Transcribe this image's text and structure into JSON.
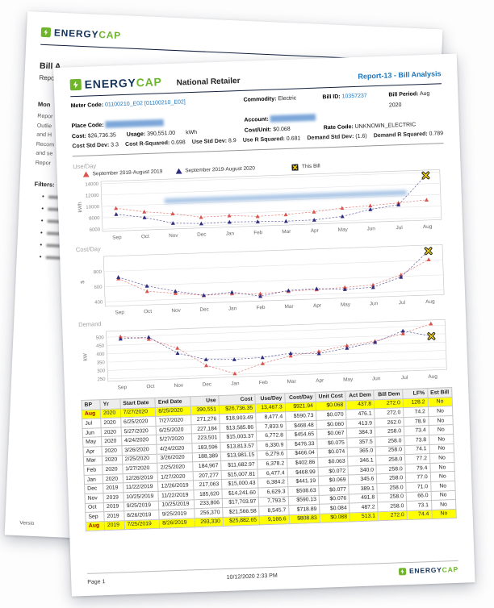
{
  "brand": {
    "energy": "ENERGY",
    "cap": "CAP"
  },
  "colors": {
    "logo_navy": "#16355c",
    "logo_green": "#6fb52c",
    "link_blue": "#1b75bc",
    "series_prior": "#d9544d",
    "series_current": "#2e2c7e",
    "this_bill_fill": "#f2cf0e",
    "this_bill_outline": "#1a1a1a",
    "row_highlight": "#ffff00"
  },
  "back_page": {
    "title": "Bill A",
    "subtitle": "Repo",
    "section_heading": "Mon",
    "paragraph_lines": [
      "Repor",
      "Outlie",
      "and H",
      "Recom",
      "and se",
      "Repor"
    ],
    "filters_label": "Filters:",
    "filter_items": [
      "",
      "",
      "",
      "",
      "",
      ""
    ],
    "version": "Versio"
  },
  "header": {
    "client": "National Retailer",
    "report_title": "Report-13 - Bill Analysis"
  },
  "meta": {
    "meter_code_label": "Meter Code:",
    "meter_code": "01100210_E02 [01100210_E02]",
    "commodity_label": "Commodity:",
    "commodity": "Electric",
    "bill_id_label": "Bill ID:",
    "bill_id": "10357237",
    "bill_period_label": "Bill Period:",
    "bill_period": "Aug 2020",
    "place_code_label": "Place Code:",
    "place_code_masked": "██████████████████",
    "account_label": "Account:",
    "account_masked": "██████████████",
    "cost_label": "Cost:",
    "cost": "$26,736.35",
    "usage_label": "Usage:",
    "usage": "390,551.00",
    "usage_unit": "kWh",
    "cost_per_unit_label": "Cost/Unit:",
    "cost_per_unit": "$0.068",
    "rate_code_label": "Rate Code:",
    "rate_code": "UNKNOWN_ELECTRIC",
    "stats": [
      {
        "label": "Cost Std Dev:",
        "value": "3.3"
      },
      {
        "label": "Cost R-Squared:",
        "value": "0.698"
      },
      {
        "label": "Use Std Dev:",
        "value": "8.9"
      },
      {
        "label": "Use R Squared:",
        "value": "0.681"
      },
      {
        "label": "Demand Std Dev:",
        "value": "(1.6)"
      },
      {
        "label": "Demand R Squared:",
        "value": "0.789"
      }
    ]
  },
  "chart_data": [
    {
      "type": "line",
      "title": "Use/Day",
      "unit": "kWh",
      "categories": [
        "Sep",
        "Oct",
        "Nov",
        "Dec",
        "Jan",
        "Feb",
        "Mar",
        "Apr",
        "May",
        "Jun",
        "Jul",
        "Aug"
      ],
      "ylim": [
        5600,
        14400
      ],
      "yticks": [
        6000,
        8000,
        10000,
        12000,
        14000
      ],
      "legend": true,
      "redacted_overlay": true,
      "series": [
        {
          "name": "September 2018-August 2019",
          "color": "#d9544d",
          "values": [
            9600,
            8800,
            8300,
            7500,
            7600,
            7300,
            7450,
            7750,
            8250,
            8500,
            8800,
            9166.6
          ]
        },
        {
          "name": "September 2019-August 2020",
          "color": "#2e2c7e",
          "values": [
            8545.7,
            7793.5,
            6629.3,
            6384.2,
            6477.4,
            6378.2,
            6279.6,
            6330.9,
            6772.8,
            7833.9,
            8477.4,
            13467.3
          ]
        }
      ],
      "this_bill": {
        "name": "This Bill",
        "category": "Aug",
        "value": 13467.3
      }
    },
    {
      "type": "line",
      "title": "Cost/Day",
      "unit": "$",
      "categories": [
        "Sep",
        "Oct",
        "Nov",
        "Dec",
        "Jan",
        "Feb",
        "Mar",
        "Apr",
        "May",
        "Jun",
        "Jul",
        "Aug"
      ],
      "ylim": [
        340,
        1000
      ],
      "yticks": [
        400,
        600,
        800
      ],
      "series": [
        {
          "name": "September 2018-August 2019",
          "color": "#d9544d",
          "values": [
            700,
            520,
            480,
            440,
            450,
            435,
            455,
            465,
            480,
            500,
            620,
            808.83
          ]
        },
        {
          "name": "September 2019-August 2020",
          "color": "#2e2c7e",
          "values": [
            718.89,
            590.13,
            508.63,
            441.19,
            468.99,
            402.86,
            466.04,
            476.33,
            454.65,
            468.48,
            590.73,
            921.94
          ]
        }
      ],
      "this_bill": {
        "name": "This Bill",
        "category": "Aug",
        "value": 921.94
      }
    },
    {
      "type": "line",
      "title": "Demand",
      "unit": "kW",
      "categories": [
        "Sep",
        "Oct",
        "Nov",
        "Dec",
        "Jan",
        "Feb",
        "Mar",
        "Apr",
        "May",
        "Jun",
        "Jul",
        "Aug"
      ],
      "ylim": [
        235,
        535
      ],
      "yticks": [
        250,
        300,
        350,
        400,
        450,
        500
      ],
      "series": [
        {
          "name": "September 2018-August 2019",
          "color": "#d9544d",
          "values": [
            500,
            480,
            420,
            310,
            255,
            310,
            350,
            370,
            400,
            420,
            460,
            513.1
          ]
        },
        {
          "name": "September 2019-August 2020",
          "color": "#2e2c7e",
          "values": [
            487.2,
            491.8,
            389.1,
            345.6,
            340.0,
            346.1,
            365.0,
            357.5,
            384.3,
            413.9,
            476.1,
            437.8
          ]
        }
      ],
      "this_bill": {
        "name": "This Bill",
        "category": "Aug",
        "value": 437.8
      }
    }
  ],
  "table": {
    "columns": [
      "BP",
      "Yr",
      "Start Date",
      "End Date",
      "Use",
      "Cost",
      "Use/Day",
      "Cost/Day",
      "Unit Cost",
      "Act Dem",
      "Bill Dem",
      "LF%",
      "Est Bill"
    ],
    "rows": [
      {
        "highlight": true,
        "cells": [
          "Aug",
          "2020",
          "7/27/2020",
          "8/25/2020",
          "390,551",
          "$26,736.35",
          "13,467.3",
          "$921.94",
          "$0.068",
          "437.8",
          "272.0",
          "128.2",
          "No"
        ]
      },
      {
        "highlight": false,
        "cells": [
          "Jul",
          "2020",
          "6/25/2020",
          "7/27/2020",
          "271,276",
          "$18,903.49",
          "8,477.4",
          "$590.73",
          "$0.070",
          "476.1",
          "272.0",
          "74.2",
          "No"
        ]
      },
      {
        "highlight": false,
        "cells": [
          "Jun",
          "2020",
          "5/27/2020",
          "6/25/2020",
          "227,184",
          "$13,585.86",
          "7,833.9",
          "$468.48",
          "$0.060",
          "413.9",
          "262.0",
          "78.9",
          "No"
        ]
      },
      {
        "highlight": false,
        "cells": [
          "May",
          "2020",
          "4/24/2020",
          "5/27/2020",
          "223,501",
          "$15,003.37",
          "6,772.8",
          "$454.65",
          "$0.067",
          "384.3",
          "258.0",
          "73.4",
          "No"
        ]
      },
      {
        "highlight": false,
        "cells": [
          "Apr",
          "2020",
          "3/26/2020",
          "4/24/2020",
          "183,596",
          "$13,813.57",
          "6,330.9",
          "$476.33",
          "$0.075",
          "357.5",
          "258.0",
          "73.8",
          "No"
        ]
      },
      {
        "highlight": false,
        "cells": [
          "Mar",
          "2020",
          "2/25/2020",
          "3/26/2020",
          "188,389",
          "$13,981.15",
          "6,279.6",
          "$466.04",
          "$0.074",
          "365.0",
          "258.0",
          "74.1",
          "No"
        ]
      },
      {
        "highlight": false,
        "cells": [
          "Feb",
          "2020",
          "1/27/2020",
          "2/25/2020",
          "184,967",
          "$11,682.97",
          "6,378.2",
          "$402.86",
          "$0.063",
          "346.1",
          "258.0",
          "77.2",
          "No"
        ]
      },
      {
        "highlight": false,
        "cells": [
          "Jan",
          "2020",
          "12/26/2019",
          "1/27/2020",
          "207,277",
          "$15,007.81",
          "6,477.4",
          "$468.99",
          "$0.072",
          "340.0",
          "258.0",
          "79.4",
          "No"
        ]
      },
      {
        "highlight": false,
        "cells": [
          "Dec",
          "2019",
          "11/22/2019",
          "12/26/2019",
          "217,063",
          "$15,000.43",
          "6,384.2",
          "$441.19",
          "$0.069",
          "345.6",
          "258.0",
          "77.0",
          "No"
        ]
      },
      {
        "highlight": false,
        "cells": [
          "Nov",
          "2019",
          "10/25/2019",
          "11/22/2019",
          "185,620",
          "$14,241.60",
          "6,629.3",
          "$508.63",
          "$0.077",
          "389.1",
          "258.0",
          "71.0",
          "No"
        ]
      },
      {
        "highlight": false,
        "cells": [
          "Oct",
          "2019",
          "9/25/2019",
          "10/25/2019",
          "233,806",
          "$17,703.97",
          "7,793.5",
          "$590.13",
          "$0.076",
          "491.8",
          "258.0",
          "66.0",
          "No"
        ]
      },
      {
        "highlight": false,
        "cells": [
          "Sep",
          "2019",
          "8/26/2019",
          "9/25/2019",
          "256,370",
          "$21,566.58",
          "8,545.7",
          "$718.89",
          "$0.084",
          "487.2",
          "258.0",
          "73.1",
          "No"
        ]
      },
      {
        "highlight": true,
        "cells": [
          "Aug",
          "2019",
          "7/25/2019",
          "8/26/2019",
          "293,330",
          "$25,882.65",
          "9,166.6",
          "$808.83",
          "$0.088",
          "513.1",
          "272.0",
          "74.4",
          "No"
        ]
      }
    ]
  },
  "footer": {
    "page": "Page 1",
    "datetime": "10/12/2020 2:33 PM"
  }
}
